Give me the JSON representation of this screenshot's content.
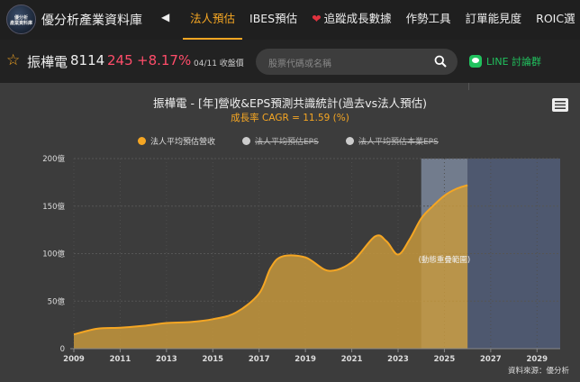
{
  "site": {
    "logo_text": "優分析\n產業資料庫",
    "title": "優分析產業資料庫"
  },
  "nav": {
    "arrow": "◀",
    "items": [
      {
        "label": "法人預估",
        "active": true
      },
      {
        "label": "IBES預估",
        "active": false
      },
      {
        "label": "追蹤成長數據",
        "active": false,
        "icon": "heart-icon"
      },
      {
        "label": "作勢工具",
        "active": false
      },
      {
        "label": "訂單能見度",
        "active": false
      },
      {
        "label": "ROIC選",
        "active": false
      }
    ]
  },
  "stock": {
    "name": "振樺電",
    "code": "8114",
    "price": "245",
    "change": "+8.17%",
    "date": "04/11 收盤價"
  },
  "search": {
    "placeholder": "股票代碼或名稱"
  },
  "line_group": {
    "label": "LINE 討論群"
  },
  "chart_data": {
    "type": "area",
    "title": "振樺電 - [年]營收&EPS預測共識統計(過去vs法人預估)",
    "subtitle": "成長率 CAGR = 11.59 (%)",
    "legend": [
      {
        "name": "法人平均預估營收",
        "color": "#f5a623",
        "enabled": true
      },
      {
        "name": "法人平均預估EPS",
        "color": "#cccccc",
        "enabled": false
      },
      {
        "name": "法人平均預估本業EPS",
        "color": "#cccccc",
        "enabled": false
      }
    ],
    "xlim": [
      2009,
      2030
    ],
    "ylim": [
      0,
      200
    ],
    "xticks": [
      "2009",
      "2011",
      "2013",
      "2015",
      "2017",
      "2019",
      "2021",
      "2023",
      "2025",
      "2027",
      "2029"
    ],
    "yticks": [
      "0",
      "50億",
      "100億",
      "150億",
      "200億"
    ],
    "series": [
      {
        "name": "法人平均預估營收",
        "x": [
          2009,
          2010,
          2011,
          2012,
          2013,
          2014,
          2015,
          2016,
          2017,
          2017.5,
          2018,
          2019,
          2020,
          2021,
          2022,
          2022.5,
          2023,
          2023.5,
          2024,
          2024.5,
          2025,
          2025.5,
          2026
        ],
        "y": [
          15,
          21,
          22,
          24,
          27,
          28,
          31,
          38,
          58,
          85,
          97,
          96,
          82,
          91,
          118,
          113,
          99,
          115,
          137,
          150,
          161,
          168,
          172
        ]
      }
    ],
    "bands": [
      {
        "label": "(動態重疊範圍)",
        "from": 2024,
        "to": 2026,
        "color": "#9fb0cf"
      },
      {
        "label": "",
        "from": 2026,
        "to": 2030,
        "color": "#5a6a91"
      }
    ],
    "grid": true,
    "colors": {
      "area_fill": "#c99a3c",
      "line": "#f5a623"
    }
  },
  "menu": {
    "icon": "hamburger-icon"
  },
  "source": "資料來源：優分析"
}
